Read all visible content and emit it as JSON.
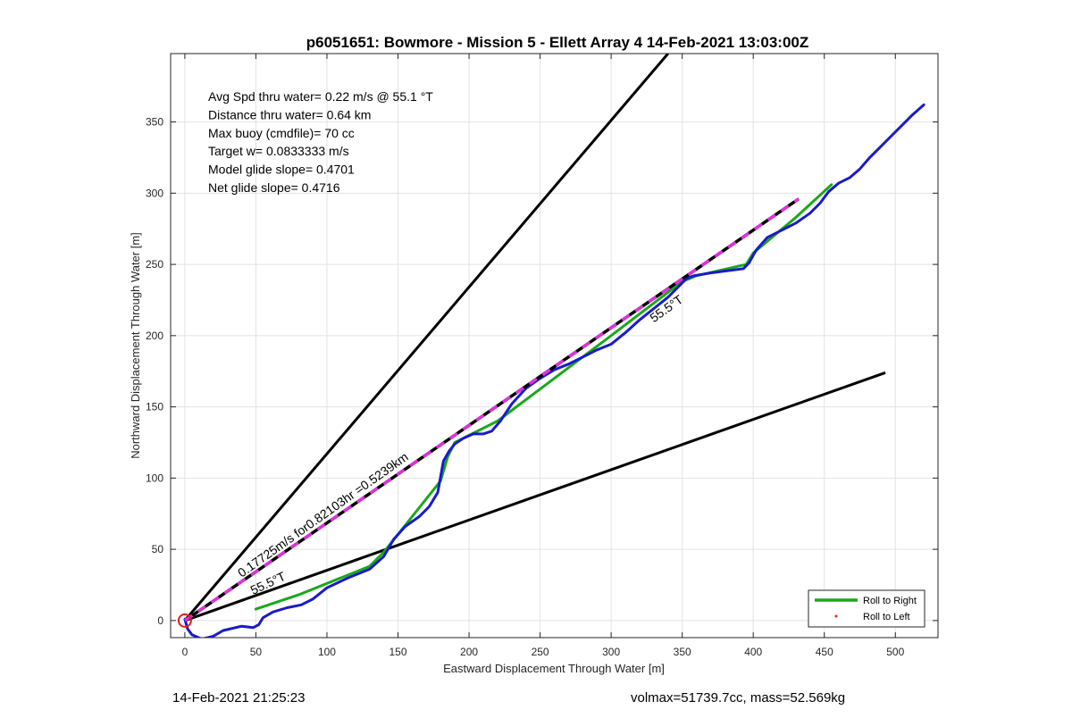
{
  "chart_data": {
    "type": "line",
    "title": "p6051651: Bowmore - Mission 5 - Ellett Array 4 14-Feb-2021 13:03:00Z",
    "xlabel": "Eastward Displacement Through Water [m]",
    "ylabel": "Northward Displacement Through Water [m]",
    "xlim": [
      -10,
      530
    ],
    "ylim": [
      -12,
      398
    ],
    "xticks": [
      0,
      50,
      100,
      150,
      200,
      250,
      300,
      350,
      400,
      450,
      500
    ],
    "yticks": [
      0,
      50,
      100,
      150,
      200,
      250,
      300,
      350
    ],
    "xtick_labels": [
      "0",
      "50",
      "100",
      "150",
      "200",
      "250",
      "300",
      "350",
      "400",
      "450",
      "500"
    ],
    "ytick_labels": [
      "0",
      "50",
      "100",
      "150",
      "200",
      "250",
      "300",
      "350"
    ],
    "grid": true,
    "legend_position": "bottom-right",
    "info_lines": [
      "Avg Spd thru water=  0.22 m/s @  55.1 °T",
      "Distance thru water=  0.64 km",
      "Max buoy (cmdfile)= 70 cc",
      "Target w= 0.0833333 m/s",
      "Model glide slope= 0.4701",
      "Net glide slope= 0.4716"
    ],
    "annotations": [
      {
        "text": "0.17725m/s for0.82103hr =0.5239km",
        "x": 40,
        "y": 30,
        "angle": -35.4
      },
      {
        "text": "55.5°T",
        "x": 48,
        "y": 18,
        "angle": -25.0
      },
      {
        "text": "55.5°T",
        "x": 330,
        "y": 209,
        "angle": -35.4
      }
    ],
    "series": [
      {
        "name": "Roll to Right",
        "color": "#1aa81a",
        "style": "line",
        "x": [
          50,
          80,
          130,
          140,
          180,
          185,
          190,
          220,
          260,
          300,
          350,
          360,
          395,
          400,
          430,
          455
        ],
        "y": [
          8,
          18,
          38,
          48,
          98,
          115,
          125,
          140,
          170,
          200,
          238,
          242,
          250,
          258,
          283,
          306
        ]
      },
      {
        "name": "Roll to Left",
        "color": "#e02020",
        "style": "dots",
        "x": [],
        "y": []
      },
      {
        "color": "#1a1acc",
        "style": "line",
        "x": [
          0,
          2,
          5,
          12,
          20,
          27,
          40,
          48,
          52,
          55,
          62,
          72,
          82,
          90,
          100,
          115,
          130,
          140,
          147,
          155,
          165,
          172,
          178,
          180,
          182,
          186,
          190,
          196,
          203,
          210,
          216,
          222,
          230,
          240,
          250,
          260,
          270,
          280,
          290,
          300,
          310,
          320,
          330,
          340,
          348,
          353,
          358,
          370,
          385,
          393,
          397,
          402,
          410,
          420,
          430,
          440,
          447,
          453,
          460,
          468,
          475,
          482,
          490,
          497,
          505,
          512,
          520
        ],
        "y": [
          1,
          -6,
          -10,
          -13,
          -11,
          -7,
          -4,
          -5,
          -3,
          2,
          6,
          9,
          11,
          15,
          23,
          30,
          36,
          45,
          57,
          66,
          73,
          80,
          90,
          101,
          112,
          119,
          124,
          128,
          131,
          131,
          133,
          140,
          152,
          163,
          170,
          176,
          180,
          185,
          190,
          194,
          202,
          211,
          219,
          227,
          235,
          240,
          242,
          244,
          246,
          247,
          251,
          260,
          269,
          274,
          279,
          286,
          293,
          301,
          307,
          311,
          317,
          325,
          333,
          340,
          348,
          355,
          362
        ]
      },
      {
        "color": "#000000",
        "style": "ray",
        "x": [
          0,
          340
        ],
        "y": [
          0,
          398
        ]
      },
      {
        "color": "#000000",
        "style": "ray",
        "x": [
          0,
          493
        ],
        "y": [
          0,
          174
        ]
      },
      {
        "color": "#000000",
        "style": "dashed",
        "dash_color": "#dd30dd",
        "x": [
          0,
          432
        ],
        "y": [
          0,
          296
        ]
      }
    ],
    "origin_marker": {
      "x": 0,
      "y": 0,
      "color": "#e02020"
    }
  },
  "footer": {
    "timestamp": "14-Feb-2021 21:25:23",
    "volume_mass": "volmax=51739.7cc, mass=52.569kg"
  }
}
